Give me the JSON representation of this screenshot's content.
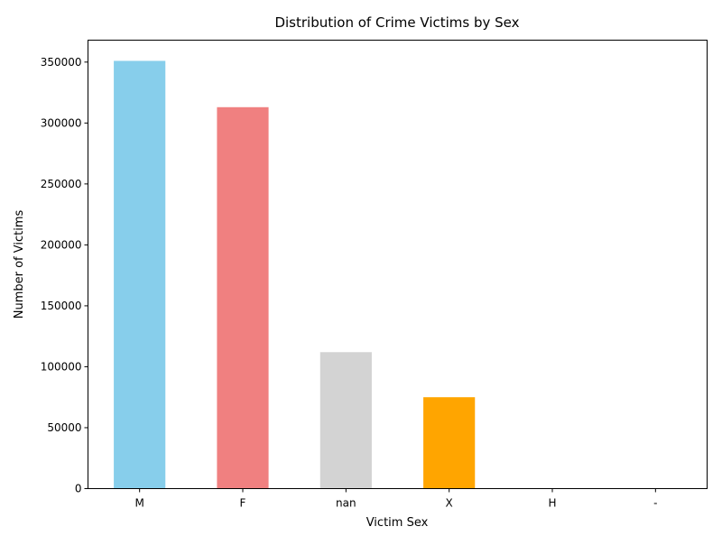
{
  "chart_data": {
    "type": "bar",
    "title": "Distribution of Crime Victims by Sex",
    "xlabel": "Victim Sex",
    "ylabel": "Number of Victims",
    "categories": [
      "M",
      "F",
      "nan",
      "X",
      "H",
      "-"
    ],
    "values": [
      351000,
      313000,
      112000,
      75000,
      100,
      1
    ],
    "colors": [
      "#87ceeb",
      "#f08080",
      "#d3d3d3",
      "#ffa500",
      "#87ceeb",
      "#87ceeb"
    ],
    "ylim": [
      0,
      368000
    ],
    "yticks": [
      0,
      50000,
      100000,
      150000,
      200000,
      250000,
      300000,
      350000
    ],
    "grid": false,
    "legend": "none"
  }
}
